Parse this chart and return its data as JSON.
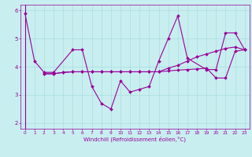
{
  "background_color": "#c8eef0",
  "line_color": "#990099",
  "grid_color": "#aadddd",
  "xlabel": "Windchill (Refroidissement éolien,°C)",
  "xlabel_color": "#990099",
  "tick_color": "#990099",
  "ylim": [
    1.8,
    6.2
  ],
  "yticks": [
    2,
    3,
    4,
    5,
    6
  ],
  "xlim": [
    -0.5,
    23.5
  ],
  "xticks": [
    0,
    1,
    2,
    3,
    4,
    5,
    6,
    7,
    8,
    9,
    10,
    11,
    12,
    13,
    14,
    15,
    16,
    17,
    18,
    19,
    20,
    21,
    22,
    23
  ],
  "series": [
    [
      5.9,
      4.2,
      3.8,
      3.8,
      4.6,
      4.6,
      3.3,
      2.7,
      2.5,
      3.5,
      3.1,
      3.2,
      3.3,
      4.2,
      5.0,
      5.8,
      4.3,
      3.9,
      3.9,
      5.2,
      5.2,
      4.6
    ],
    [
      3.75,
      3.75,
      3.8,
      3.82,
      3.82,
      3.82,
      3.82,
      3.82,
      3.82,
      3.82,
      3.82,
      3.82,
      3.82,
      3.95,
      4.05,
      4.2,
      4.35,
      4.45,
      4.55,
      4.65,
      4.7,
      4.6
    ],
    [
      3.75,
      3.75,
      3.8,
      3.82,
      3.82,
      3.82,
      3.82,
      3.82,
      3.82,
      3.82,
      3.82,
      3.82,
      3.82,
      3.85,
      3.88,
      3.9,
      3.92,
      3.95,
      3.6,
      3.6,
      4.55,
      4.6
    ]
  ],
  "series_x": [
    [
      0,
      1,
      2,
      3,
      5,
      6,
      7,
      8,
      9,
      10,
      11,
      12,
      13,
      14,
      15,
      16,
      17,
      19,
      20,
      21,
      22,
      23
    ],
    [
      2,
      3,
      4,
      5,
      6,
      7,
      8,
      9,
      10,
      11,
      12,
      13,
      14,
      15,
      16,
      17,
      18,
      19,
      20,
      21,
      22,
      23
    ],
    [
      2,
      3,
      4,
      5,
      6,
      7,
      8,
      9,
      10,
      11,
      12,
      13,
      14,
      15,
      16,
      17,
      18,
      19,
      20,
      21,
      22,
      23
    ]
  ]
}
